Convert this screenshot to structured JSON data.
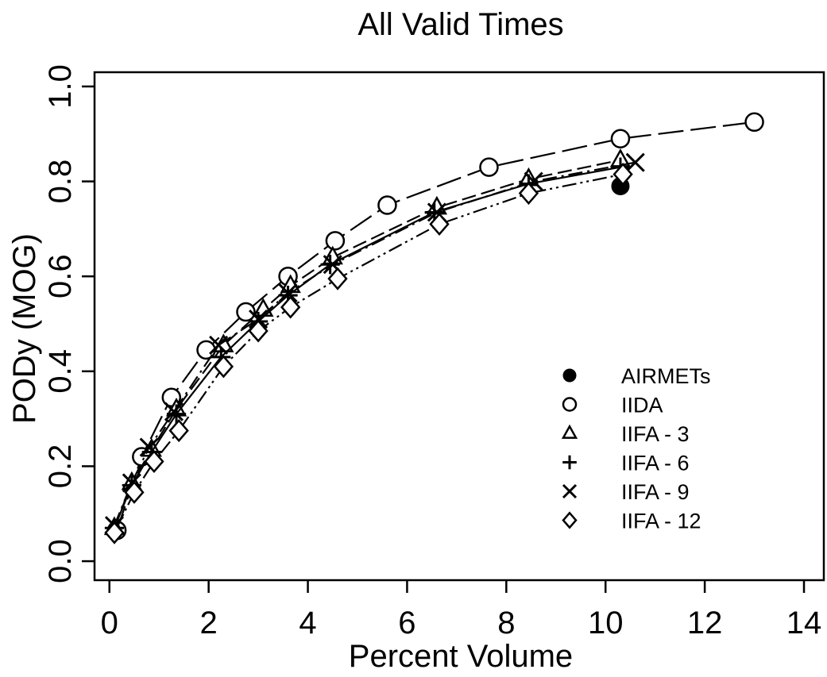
{
  "chart_data": {
    "type": "line",
    "title": "All Valid Times",
    "xlabel": "Percent Volume",
    "ylabel": "PODy (MOG)",
    "xlim": [
      -0.3,
      14.4
    ],
    "ylim": [
      -0.04,
      1.03
    ],
    "xticks": [
      "0",
      "2",
      "4",
      "6",
      "8",
      "10",
      "12",
      "14"
    ],
    "yticks": [
      "0.0",
      "0.2",
      "0.4",
      "0.6",
      "0.8",
      "1.0"
    ],
    "grid": false,
    "legend_position": "lower-right",
    "series": [
      {
        "name": "AIRMETs",
        "marker": "filled-circle",
        "line": "none",
        "x": [
          10.3
        ],
        "y": [
          0.79
        ]
      },
      {
        "name": "IIDA",
        "marker": "circle",
        "line": "long-dash",
        "x": [
          0.15,
          0.65,
          1.25,
          1.95,
          2.75,
          3.6,
          4.55,
          5.6,
          7.65,
          10.3,
          13.0
        ],
        "y": [
          0.065,
          0.22,
          0.345,
          0.445,
          0.525,
          0.6,
          0.675,
          0.75,
          0.83,
          0.89,
          0.925
        ]
      },
      {
        "name": "IIFA - 3",
        "marker": "triangle",
        "line": "dash",
        "x": [
          0.1,
          0.45,
          0.85,
          1.35,
          2.3,
          3.1,
          3.65,
          4.5,
          6.6,
          8.45,
          10.3
        ],
        "y": [
          0.07,
          0.165,
          0.235,
          0.32,
          0.455,
          0.53,
          0.58,
          0.64,
          0.745,
          0.805,
          0.845
        ]
      },
      {
        "name": "IIFA - 6",
        "marker": "plus",
        "line": "solid",
        "x": [
          0.1,
          0.45,
          0.85,
          1.35,
          2.25,
          3.0,
          3.6,
          4.45,
          6.55,
          8.45,
          10.3
        ],
        "y": [
          0.07,
          0.16,
          0.23,
          0.31,
          0.43,
          0.505,
          0.56,
          0.625,
          0.735,
          0.795,
          0.83
        ]
      },
      {
        "name": "IIFA - 9",
        "marker": "x",
        "line": "dash-dot",
        "x": [
          0.1,
          0.45,
          0.8,
          1.3,
          2.2,
          3.0,
          3.6,
          4.5,
          6.6,
          8.55,
          10.6
        ],
        "y": [
          0.075,
          0.165,
          0.24,
          0.315,
          0.455,
          0.51,
          0.565,
          0.625,
          0.735,
          0.8,
          0.84
        ]
      },
      {
        "name": "IIFA - 12",
        "marker": "diamond",
        "line": "dash-dot-dot",
        "x": [
          0.1,
          0.5,
          0.9,
          1.4,
          2.3,
          3.0,
          3.65,
          4.6,
          6.65,
          8.45,
          10.35
        ],
        "y": [
          0.06,
          0.145,
          0.21,
          0.275,
          0.41,
          0.485,
          0.535,
          0.595,
          0.71,
          0.775,
          0.815
        ]
      }
    ]
  }
}
